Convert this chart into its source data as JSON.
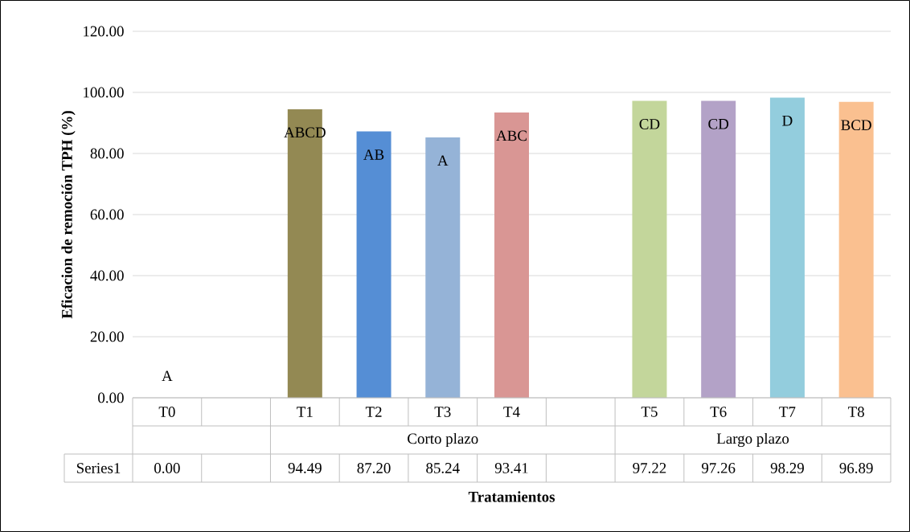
{
  "chart_data": {
    "type": "bar",
    "xlabel": "Tratamientos",
    "ylabel": "Eficacion de remoción TPH (%)",
    "categories": [
      "T0",
      null,
      "T1",
      "T2",
      "T3",
      "T4",
      null,
      "T5",
      "T6",
      "T7",
      "T8"
    ],
    "series": [
      {
        "name": "Series1",
        "values": [
          0.0,
          null,
          94.49,
          87.2,
          85.24,
          93.41,
          null,
          97.22,
          97.26,
          98.29,
          96.89
        ],
        "colors": [
          "#4f81bd",
          null,
          "#938953",
          "#558ed5",
          "#95b3d7",
          "#d99694",
          null,
          "#c3d69b",
          "#b3a2c7",
          "#93cddd",
          "#fac090"
        ],
        "value_labels": [
          "0.00",
          null,
          "94.49",
          "87.20",
          "85.24",
          "93.41",
          null,
          "97.22",
          "97.26",
          "98.29",
          "96.89"
        ]
      }
    ],
    "ylim": [
      0,
      120
    ],
    "yticks": [
      {
        "value": 0,
        "label": "0.00"
      },
      {
        "value": 20,
        "label": "20.00"
      },
      {
        "value": 40,
        "label": "40.00"
      },
      {
        "value": 60,
        "label": "60.00"
      },
      {
        "value": 80,
        "label": "80.00"
      },
      {
        "value": 100,
        "label": "100.00"
      },
      {
        "value": 120,
        "label": "120.00"
      }
    ],
    "grid": "y",
    "annotations": [
      "Corto plazo",
      "Largo plazo",
      "A",
      "ABCD",
      "AB",
      "A",
      "ABC",
      "CD",
      "CD",
      "D",
      "BCD"
    ]
  }
}
